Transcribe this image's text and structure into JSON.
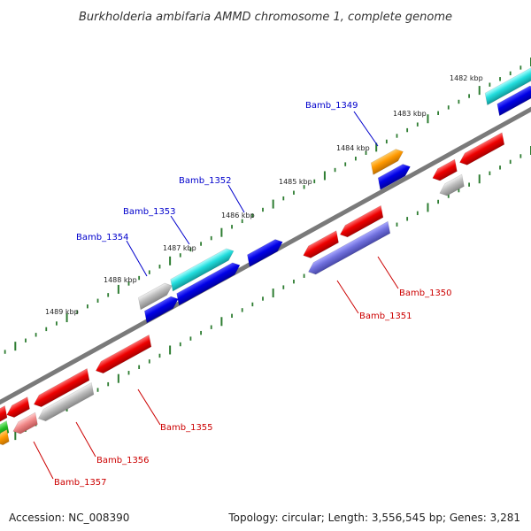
{
  "title": "Burkholderia ambifaria AMMD chromosome 1, complete genome",
  "footer": {
    "accession": "Accession: NC_008390",
    "topology": "Topology: circular; Length: 3,556,545 bp; Genes: 3,281"
  },
  "colors": {
    "backbone": "#7a7a7a",
    "ticks": "#2e7d32",
    "forward_label": "#0000cc",
    "reverse_label": "#cc0000"
  },
  "scale_labels": [
    "1482 kbp",
    "1483 kbp",
    "1484 kbp",
    "1485 kbp",
    "1486 kbp",
    "1487 kbp",
    "1488 kbp",
    "1489 kbp"
  ],
  "gene_labels": [
    "Bamb_1349",
    "Bamb_1352",
    "Bamb_1353",
    "Bamb_1354",
    "Bamb_1350",
    "Bamb_1351",
    "Bamb_1355",
    "Bamb_1356",
    "Bamb_1357"
  ]
}
